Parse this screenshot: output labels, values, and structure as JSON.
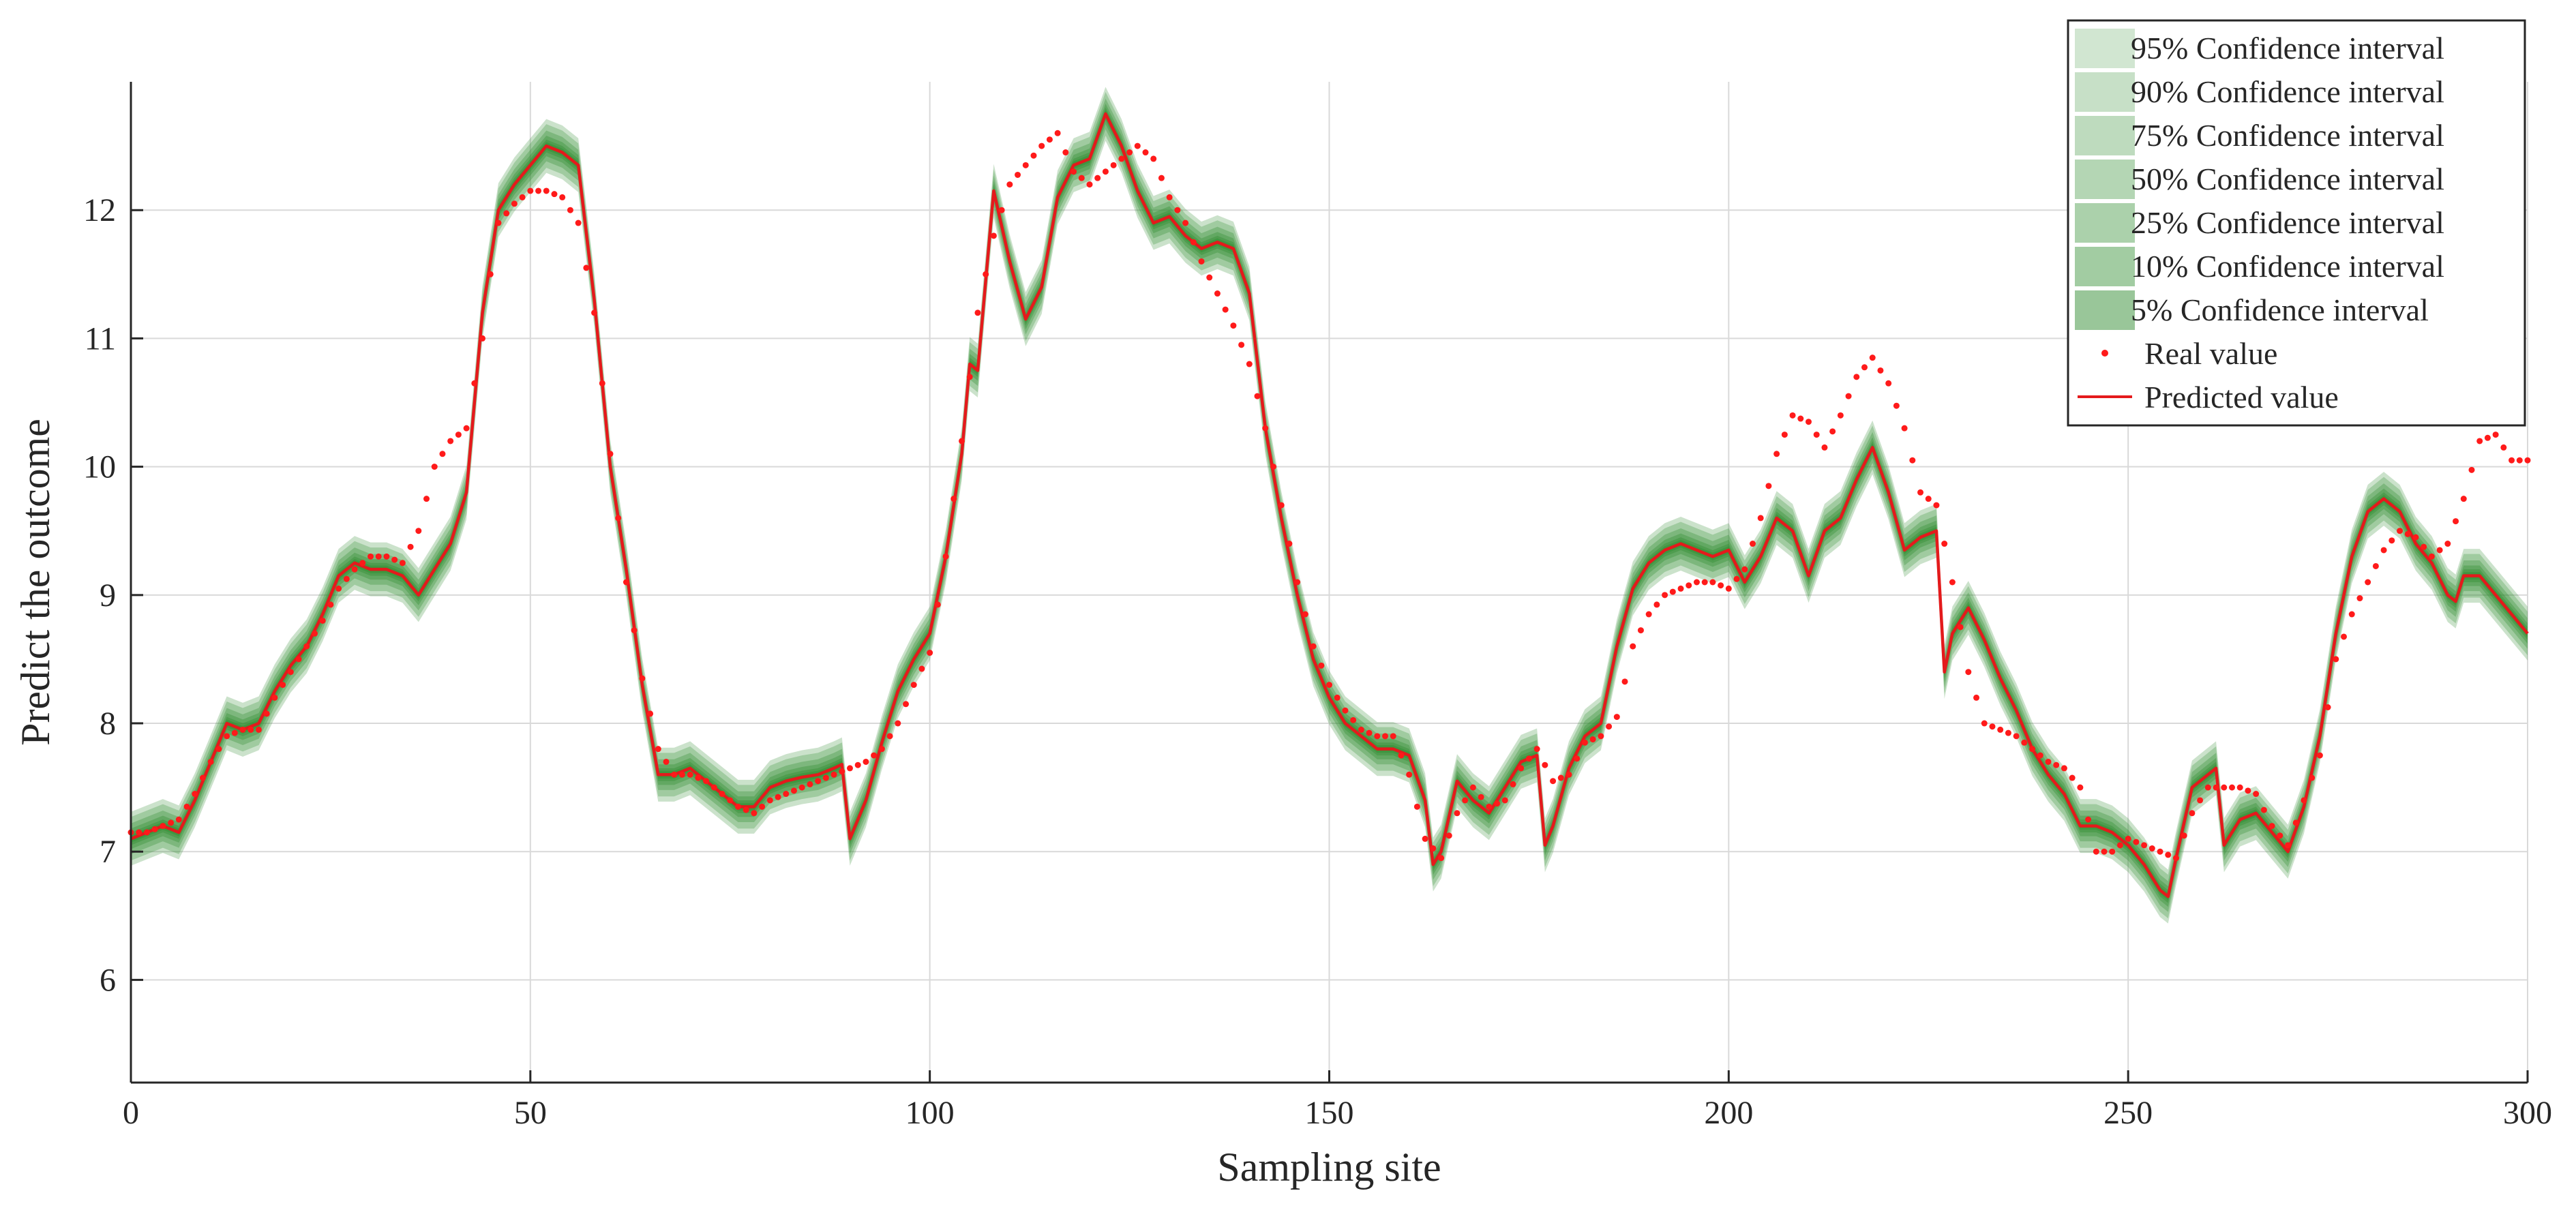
{
  "chart_data": {
    "type": "line",
    "title": "",
    "xlabel": "Sampling site",
    "ylabel": "Predict the outcome",
    "xlim": [
      0,
      300
    ],
    "ylim": [
      5.2,
      13.0
    ],
    "xticks": [
      0,
      50,
      100,
      150,
      200,
      250,
      300
    ],
    "yticks": [
      6,
      7,
      8,
      9,
      10,
      11,
      12
    ],
    "grid": true,
    "legend_position": "top-right",
    "colors": {
      "predicted": "#e41a1c",
      "real": "#ff1a1a",
      "band": "#2e8b2e",
      "grid": "#d9d9d9",
      "axis": "#262626"
    },
    "confidence_bands": [
      {
        "name": "95% Confidence interval",
        "half_width": 0.21,
        "opacity": 0.25
      },
      {
        "name": "90% Confidence interval",
        "half_width": 0.17,
        "opacity": 0.27
      },
      {
        "name": "75% Confidence interval",
        "half_width": 0.12,
        "opacity": 0.3
      },
      {
        "name": "50% Confidence interval",
        "half_width": 0.08,
        "opacity": 0.33
      },
      {
        "name": "25% Confidence interval",
        "half_width": 0.05,
        "opacity": 0.36
      },
      {
        "name": "10% Confidence interval",
        "half_width": 0.03,
        "opacity": 0.4
      },
      {
        "name": "5% Confidence interval",
        "half_width": 0.015,
        "opacity": 0.45
      }
    ],
    "series": [
      {
        "name": "Predicted value",
        "style": "line",
        "x": [
          0,
          2,
          4,
          6,
          8,
          10,
          12,
          14,
          16,
          18,
          20,
          22,
          24,
          26,
          28,
          30,
          32,
          34,
          36,
          38,
          40,
          42,
          44,
          46,
          48,
          50,
          52,
          54,
          56,
          58,
          60,
          62,
          64,
          66,
          68,
          70,
          72,
          74,
          76,
          78,
          80,
          82,
          84,
          86,
          88,
          89,
          90,
          92,
          94,
          96,
          98,
          100,
          102,
          104,
          105,
          106,
          108,
          110,
          112,
          114,
          116,
          118,
          120,
          122,
          124,
          126,
          128,
          130,
          132,
          134,
          136,
          138,
          140,
          142,
          144,
          146,
          148,
          150,
          152,
          154,
          156,
          158,
          160,
          162,
          163,
          164,
          166,
          168,
          170,
          172,
          174,
          176,
          177,
          178,
          180,
          182,
          184,
          186,
          188,
          190,
          192,
          194,
          196,
          198,
          200,
          202,
          204,
          206,
          208,
          210,
          212,
          214,
          216,
          218,
          220,
          222,
          224,
          226,
          227,
          228,
          230,
          232,
          234,
          236,
          238,
          240,
          242,
          244,
          246,
          248,
          250,
          252,
          254,
          255,
          256,
          258,
          260,
          261,
          262,
          264,
          266,
          268,
          270,
          272,
          274,
          276,
          278,
          280,
          282,
          284,
          286,
          288,
          290,
          291,
          292,
          294,
          296,
          298,
          300
        ],
        "y": [
          7.1,
          7.15,
          7.2,
          7.15,
          7.4,
          7.7,
          8.0,
          7.95,
          8.0,
          8.25,
          8.45,
          8.6,
          8.85,
          9.15,
          9.25,
          9.2,
          9.2,
          9.15,
          9.0,
          9.2,
          9.4,
          9.8,
          11.2,
          12.0,
          12.2,
          12.35,
          12.5,
          12.45,
          12.35,
          11.3,
          10.0,
          9.2,
          8.3,
          7.6,
          7.6,
          7.65,
          7.55,
          7.45,
          7.35,
          7.35,
          7.5,
          7.55,
          7.58,
          7.6,
          7.65,
          7.68,
          7.1,
          7.4,
          7.85,
          8.25,
          8.5,
          8.7,
          9.3,
          10.1,
          10.8,
          10.75,
          12.15,
          11.6,
          11.15,
          11.4,
          12.1,
          12.35,
          12.4,
          12.75,
          12.5,
          12.15,
          11.9,
          11.95,
          11.8,
          11.7,
          11.75,
          11.7,
          11.35,
          10.3,
          9.6,
          9.0,
          8.5,
          8.2,
          8.0,
          7.9,
          7.8,
          7.8,
          7.75,
          7.4,
          6.9,
          7.0,
          7.55,
          7.4,
          7.3,
          7.5,
          7.7,
          7.75,
          7.05,
          7.2,
          7.65,
          7.9,
          8.0,
          8.6,
          9.05,
          9.25,
          9.35,
          9.4,
          9.35,
          9.3,
          9.35,
          9.1,
          9.3,
          9.6,
          9.5,
          9.15,
          9.5,
          9.6,
          9.9,
          10.15,
          9.8,
          9.35,
          9.45,
          9.5,
          8.4,
          8.7,
          8.9,
          8.65,
          8.35,
          8.1,
          7.8,
          7.6,
          7.45,
          7.2,
          7.2,
          7.15,
          7.05,
          6.9,
          6.7,
          6.65,
          6.95,
          7.5,
          7.6,
          7.65,
          7.05,
          7.25,
          7.3,
          7.15,
          7.0,
          7.35,
          7.9,
          8.7,
          9.3,
          9.65,
          9.75,
          9.65,
          9.4,
          9.25,
          9.0,
          8.95,
          9.15,
          9.15,
          9.0,
          8.85,
          8.7
        ]
      },
      {
        "name": "Real value",
        "style": "dots",
        "x": [
          0,
          2,
          4,
          6,
          8,
          10,
          12,
          14,
          16,
          18,
          20,
          22,
          24,
          26,
          28,
          30,
          32,
          34,
          36,
          38,
          40,
          42,
          44,
          45,
          46,
          48,
          50,
          52,
          54,
          56,
          58,
          60,
          62,
          64,
          66,
          68,
          70,
          72,
          74,
          76,
          78,
          80,
          82,
          84,
          86,
          88,
          90,
          92,
          94,
          96,
          98,
          100,
          102,
          104,
          106,
          108,
          110,
          112,
          114,
          116,
          118,
          120,
          122,
          124,
          126,
          128,
          130,
          132,
          134,
          136,
          138,
          140,
          142,
          144,
          146,
          148,
          150,
          152,
          154,
          156,
          158,
          160,
          162,
          164,
          166,
          168,
          170,
          172,
          174,
          176,
          178,
          180,
          182,
          184,
          186,
          188,
          190,
          192,
          194,
          196,
          198,
          200,
          202,
          204,
          206,
          208,
          210,
          212,
          214,
          216,
          218,
          220,
          222,
          224,
          226,
          228,
          230,
          232,
          234,
          236,
          238,
          240,
          242,
          244,
          246,
          248,
          250,
          252,
          254,
          256,
          258,
          260,
          262,
          264,
          266,
          268,
          270,
          272,
          274,
          276,
          278,
          280,
          282,
          284,
          286,
          288,
          290,
          292,
          294,
          296,
          298,
          300
        ],
        "y": [
          7.15,
          7.15,
          7.2,
          7.25,
          7.45,
          7.7,
          7.9,
          7.95,
          7.95,
          8.2,
          8.4,
          8.6,
          8.8,
          9.05,
          9.2,
          9.3,
          9.3,
          9.25,
          9.5,
          10.0,
          10.2,
          10.3,
          11.0,
          11.5,
          11.9,
          12.05,
          12.15,
          12.15,
          12.1,
          11.9,
          11.2,
          10.1,
          9.1,
          8.35,
          7.8,
          7.6,
          7.6,
          7.55,
          7.45,
          7.35,
          7.3,
          7.4,
          7.45,
          7.5,
          7.55,
          7.6,
          7.65,
          7.7,
          7.8,
          8.0,
          8.3,
          8.55,
          9.3,
          10.2,
          11.2,
          11.8,
          12.2,
          12.35,
          12.5,
          12.6,
          12.3,
          12.2,
          12.3,
          12.4,
          12.5,
          12.4,
          12.1,
          11.9,
          11.6,
          11.35,
          11.1,
          10.8,
          10.3,
          9.7,
          9.1,
          8.6,
          8.3,
          8.1,
          7.95,
          7.9,
          7.9,
          7.6,
          7.1,
          6.95,
          7.3,
          7.5,
          7.35,
          7.4,
          7.65,
          7.8,
          7.55,
          7.6,
          7.85,
          7.9,
          8.05,
          8.6,
          8.85,
          9.0,
          9.05,
          9.1,
          9.1,
          9.05,
          9.2,
          9.6,
          10.1,
          10.4,
          10.35,
          10.15,
          10.4,
          10.7,
          10.85,
          10.65,
          10.3,
          9.8,
          9.7,
          9.1,
          8.4,
          8.0,
          7.95,
          7.9,
          7.8,
          7.7,
          7.65,
          7.5,
          7.0,
          7.0,
          7.1,
          7.05,
          7.0,
          6.95,
          7.3,
          7.5,
          7.5,
          7.5,
          7.45,
          7.2,
          7.05,
          7.4,
          7.75,
          8.5,
          8.85,
          9.1,
          9.35,
          9.5,
          9.45,
          9.3,
          9.4,
          9.75,
          10.2,
          10.25,
          10.05,
          10.05
        ]
      }
    ]
  }
}
